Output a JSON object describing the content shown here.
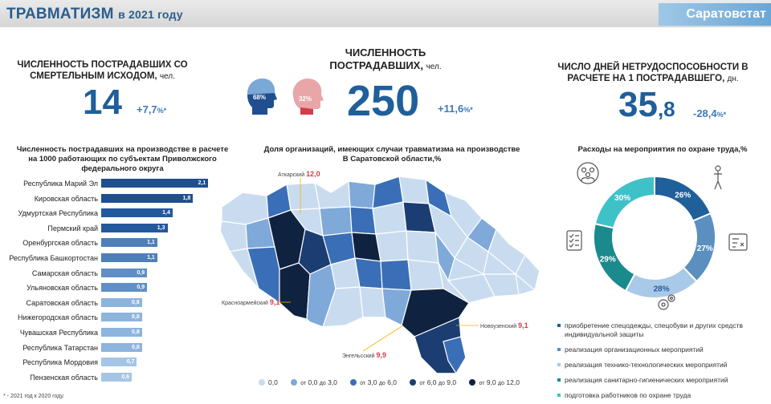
{
  "header": {
    "title_main": "ТРАВМАТИЗМ",
    "title_year": "в 2021 году",
    "org": "Саратовстат"
  },
  "kpi": {
    "fatal": {
      "label_line1": "ЧИСЛЕННОСТЬ ПОСТРАДАВШИХ СО",
      "label_line2": "СМЕРТЕЛЬНЫМ ИСХОДОМ,",
      "unit": "чел.",
      "value": "14",
      "change": "+7,7",
      "change_unit": "%*"
    },
    "total": {
      "label_line1": "ЧИСЛЕННОСТЬ",
      "label_line2": "ПОСТРАДАВШИХ,",
      "unit": "чел.",
      "value": "250",
      "change": "+11,6",
      "change_unit": "%*",
      "male_pct": "68%",
      "female_pct": "32%"
    },
    "days": {
      "label_line1": "ЧИСЛО ДНЕЙ НЕТРУДОСПОСОБНОСТИ В",
      "label_line2": "РАСЧЕТЕ НА 1 ПОСТРАДАВШЕГО,",
      "unit": "дн.",
      "value_int": "35",
      "value_dec": ",8",
      "change": "-28,4",
      "change_unit": "%*"
    }
  },
  "bar_section": {
    "title_line1": "Численность пострадавших на производстве в расчете",
    "title_line2": "на 1000 работающих по субъектам Приволжского",
    "title_line3": "федерального округа"
  },
  "map_section": {
    "title_line1": "Доля организаций, имеющих случаи травматизма на производстве",
    "title_line2": "В Саратовской области,%",
    "labels": [
      {
        "name": "Аткарский",
        "value": "12,0"
      },
      {
        "name": "Красноармейский",
        "value": "9,1"
      },
      {
        "name": "Новоузенский",
        "value": "9,1"
      },
      {
        "name": "Энгельсский",
        "value": "9,9"
      }
    ],
    "legend": [
      {
        "label": "0,0",
        "color": "#c9dcef"
      },
      {
        "prefix": "от",
        "from": "0,0",
        "mid": "до",
        "to": "3,0",
        "color": "#7fa9d8"
      },
      {
        "prefix": "от",
        "from": "3,0",
        "mid": "до",
        "to": "6,0",
        "color": "#3a6fb7"
      },
      {
        "prefix": "от",
        "from": "6,0",
        "mid": "до",
        "to": "9,0",
        "color": "#1c3d72"
      },
      {
        "prefix": "от",
        "from": "9,0",
        "mid": "до",
        "to": "12,0",
        "color": "#0f2340"
      }
    ]
  },
  "donut_section": {
    "title": "Расходы на мероприятия по охране труда,%"
  },
  "footnote": "* - 2021 год к 2020 году.",
  "chart_data": [
    {
      "type": "bar",
      "orientation": "horizontal",
      "title": "Численность пострадавших на производстве в расчете на 1000 работающих по субъектам Приволжского федерального округа",
      "categories": [
        "Республика Марий Эл",
        "Кировская область",
        "Удмуртская Республика",
        "Пермский край",
        "Оренбургская область",
        "Республика Башкортостан",
        "Самарская область",
        "Ульяновская область",
        "Саратовская область",
        "Нижегородская область",
        "Чувашская Республика",
        "Республика Татарстан",
        "Республика Мордовия",
        "Пензенская область"
      ],
      "values": [
        2.1,
        1.8,
        1.4,
        1.3,
        1.1,
        1.1,
        0.9,
        0.9,
        0.8,
        0.8,
        0.8,
        0.8,
        0.7,
        0.6
      ],
      "value_labels": [
        "2,1",
        "1,8",
        "1,4",
        "1,3",
        "1,1",
        "1,1",
        "0,9",
        "0,9",
        "0,8",
        "0,8",
        "0,8",
        "0,8",
        "0,7",
        "0,6"
      ],
      "colors": [
        "#1f4f8f",
        "#1f4f8f",
        "#24589c",
        "#24589c",
        "#4f7fb8",
        "#4f7fb8",
        "#5f8fc6",
        "#5f8fc6",
        "#8db4dd",
        "#8db4dd",
        "#8db4dd",
        "#8db4dd",
        "#a5c5e6",
        "#a5c5e6"
      ],
      "xlim": [
        0,
        2.3
      ]
    },
    {
      "type": "pie",
      "subtype": "donut",
      "title": "Расходы на мероприятия по охране труда,%",
      "categories": [
        "приобретение спецодежды, спецобуви и других средств индивидуальной защиты",
        "реализация организационных мероприятий",
        "реализация технико-технологических мероприятий",
        "реализация санитарно-гигиенических мероприятий",
        "подготовка работников по охране труда"
      ],
      "values": [
        26,
        27,
        28,
        29,
        30
      ],
      "value_labels": [
        "26%",
        "27%",
        "28%",
        "29%",
        "30%"
      ],
      "colors": [
        "#1f5f9a",
        "#5b8fc0",
        "#a9c9e8",
        "#1a8a8c",
        "#3fc2c7"
      ]
    }
  ]
}
